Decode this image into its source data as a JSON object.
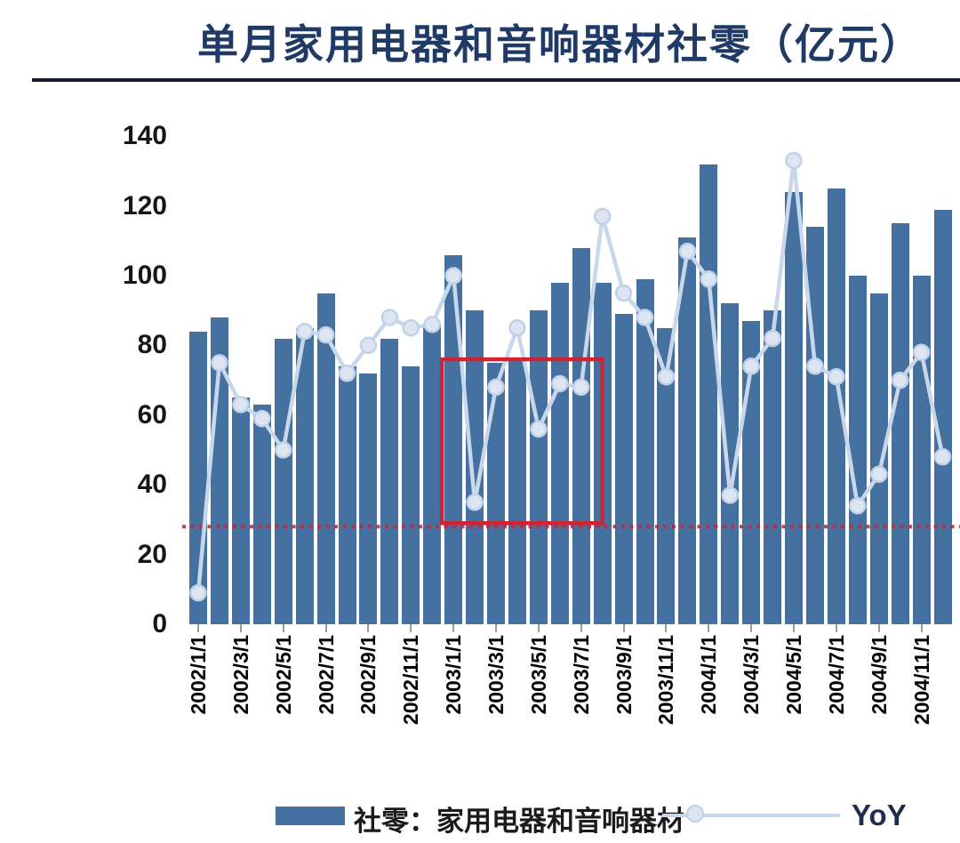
{
  "page": {
    "title": "单月家用电器和音响器材社零（亿元）"
  },
  "chart_data": {
    "type": "bar",
    "subtype": "bar-with-line-overlay",
    "title": "单月家用电器和音响器材社零（亿元）",
    "xlabel": "",
    "ylabel": "",
    "ylim": [
      0,
      140
    ],
    "y_ticks": [
      140,
      120,
      100,
      80,
      60,
      40,
      20,
      0
    ],
    "grid": "off",
    "legend_position": "bottom",
    "categories": [
      "2002/1/1",
      "2002/2/1",
      "2002/3/1",
      "2002/4/1",
      "2002/5/1",
      "2002/6/1",
      "2002/7/1",
      "2002/8/1",
      "2002/9/1",
      "2002/10/1",
      "2002/11/1",
      "2002/12/1",
      "2003/1/1",
      "2003/2/1",
      "2003/3/1",
      "2003/4/1",
      "2003/5/1",
      "2003/6/1",
      "2003/7/1",
      "2003/8/1",
      "2003/9/1",
      "2003/10/1",
      "2003/11/1",
      "2003/12/1",
      "2004/1/1",
      "2004/2/1",
      "2004/3/1",
      "2004/4/1",
      "2004/5/1",
      "2004/6/1",
      "2004/7/1",
      "2004/8/1",
      "2004/9/1",
      "2004/10/1",
      "2004/11/1",
      "2004/12/1"
    ],
    "x_tick_labels": [
      "2002/1/1",
      "2002/3/1",
      "2002/5/1",
      "2002/7/1",
      "2002/9/1",
      "2002/11/1",
      "2003/1/1",
      "2003/3/1",
      "2003/5/1",
      "2003/7/1",
      "2003/9/1",
      "2003/11/1",
      "2004/1/1",
      "2004/3/1",
      "2004/5/1",
      "2004/7/1",
      "2004/9/1",
      "2004/11/1"
    ],
    "series": [
      {
        "name": "社零：家用电器和音响器材",
        "type": "bar",
        "values": [
          84,
          88,
          65,
          63,
          82,
          85,
          95,
          74,
          72,
          82,
          74,
          86,
          106,
          90,
          75,
          76,
          90,
          98,
          108,
          98,
          89,
          99,
          85,
          111,
          132,
          92,
          87,
          90,
          124,
          114,
          125,
          100,
          95,
          115,
          100,
          119
        ]
      },
      {
        "name": "YoY",
        "type": "line",
        "values": [
          9,
          75,
          63,
          59,
          50,
          84,
          83,
          72,
          80,
          88,
          85,
          86,
          100,
          35,
          68,
          85,
          56,
          69,
          68,
          117,
          95,
          88,
          71,
          107,
          99,
          37,
          74,
          82,
          133,
          74,
          71,
          34,
          43,
          70,
          78,
          48
        ]
      }
    ],
    "annotations": {
      "red_dotted_line_y": 28,
      "red_box": {
        "from_month": "2003/1/1",
        "to_month": "2003/8/1",
        "y_from": 29,
        "y_to": 76
      }
    },
    "colors": {
      "bar": "#44719f",
      "line": "#c9d7eb",
      "marker_fill": "#dce5f2",
      "marker_stroke": "#c2d1e8",
      "annotation_red": "#cf2433",
      "title_text": "#203a66"
    },
    "legend": [
      {
        "label": "社零：家用电器和音响器材",
        "swatch": "bar"
      },
      {
        "label": "YoY",
        "swatch": "line-marker"
      }
    ]
  }
}
